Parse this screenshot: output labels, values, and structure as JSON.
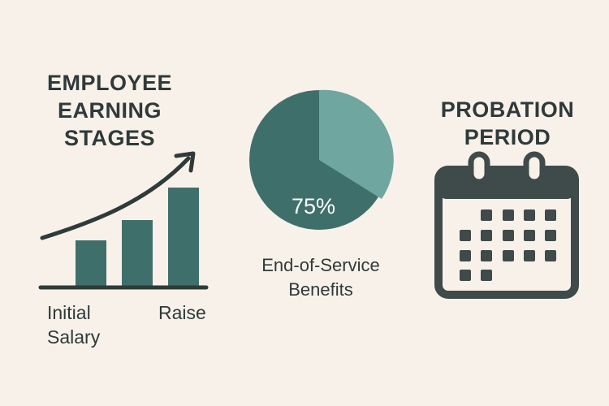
{
  "earning": {
    "title_lines": [
      "EMPLOYEE",
      "EARNING",
      "STAGES"
    ],
    "label_initial_line1": "Initial",
    "label_initial_line2": "Salary",
    "label_raise": "Raise"
  },
  "benefits": {
    "percent_label": "75%",
    "percent_value": 75,
    "caption_line1": "End-of-Service",
    "caption_line2": "Benefits"
  },
  "probation": {
    "title_lines": [
      "PROBATION",
      "PERIOD"
    ]
  },
  "colors": {
    "background": "#f8f1ea",
    "dark_teal": "#3f6f6b",
    "light_teal": "#6fa6a0",
    "ink": "#2f3a3a",
    "white": "#ffffff"
  },
  "icons": [
    "trend-arrow-icon",
    "pie-chart-icon",
    "calendar-icon"
  ]
}
